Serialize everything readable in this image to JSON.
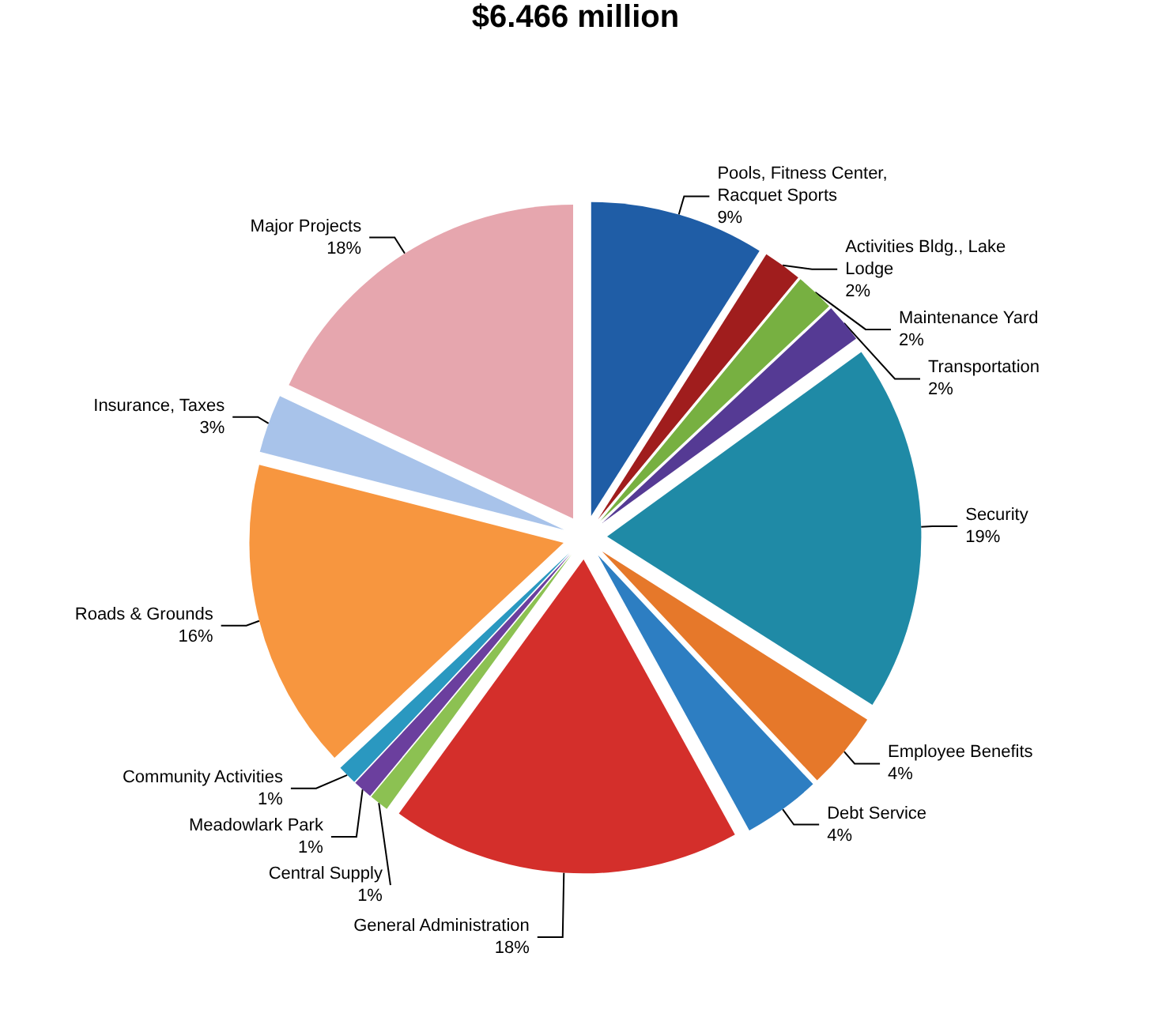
{
  "chart_data": {
    "type": "pie",
    "title": "$6.466 million",
    "categories": [
      "Pools, Fitness Center, Racquet Sports",
      "Activities Bldg., Lake Lodge",
      "Maintenance Yard",
      "Transportation",
      "Security",
      "Employee Benefits",
      "Debt Service",
      "General Administration",
      "Central Supply",
      "Meadowlark Park",
      "Community Activities",
      "Roads & Grounds",
      "Insurance, Taxes",
      "Major Projects"
    ],
    "values": [
      9,
      2,
      2,
      2,
      19,
      4,
      4,
      18,
      1,
      1,
      1,
      16,
      3,
      18
    ],
    "value_labels": [
      "9%",
      "2%",
      "2%",
      "2%",
      "19%",
      "4%",
      "4%",
      "18%",
      "1%",
      "1%",
      "1%",
      "16%",
      "3%",
      "18%"
    ],
    "colors": [
      "#1f5da6",
      "#a01d1d",
      "#77b041",
      "#553a94",
      "#1f8aa6",
      "#e6782a",
      "#2d7ec2",
      "#d42f2b",
      "#8cc152",
      "#6b3f9e",
      "#2a98c0",
      "#f7963f",
      "#a8c3ea",
      "#e6a6ae"
    ],
    "legend": false
  }
}
